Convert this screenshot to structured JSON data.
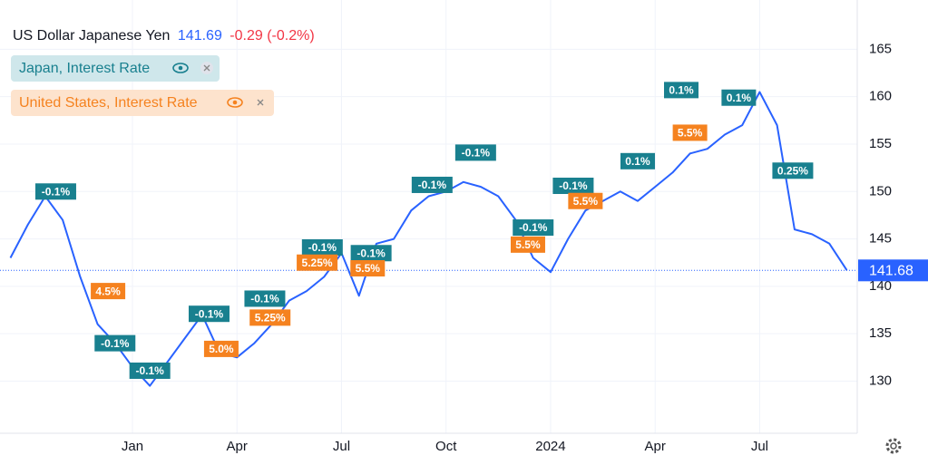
{
  "chart_data": {
    "type": "line",
    "title": "US Dollar Japanese Yen",
    "last_price": 141.69,
    "change": "-0.29 (-0.2%)",
    "current_value": 141.68,
    "x": [
      0,
      1,
      2,
      3,
      4,
      5,
      6,
      7,
      8,
      9,
      10,
      11,
      12,
      13,
      14,
      15,
      16,
      17,
      18,
      19,
      20,
      21,
      22,
      23,
      24,
      25,
      26,
      27,
      28,
      29,
      30,
      31,
      32,
      33,
      34,
      35,
      36,
      37,
      38,
      39,
      40,
      41,
      42,
      43,
      44,
      45,
      46,
      47,
      48
    ],
    "series": [
      {
        "color": "#2962ff",
        "values": [
          143,
          146.5,
          149.5,
          147,
          141,
          136,
          134,
          131.5,
          129.5,
          132,
          134.5,
          137,
          133,
          132.5,
          134,
          136,
          138.5,
          139.5,
          141,
          143.5,
          139,
          144.5,
          145,
          148,
          149.5,
          150,
          151,
          150.5,
          149.5,
          147,
          143,
          141.5,
          145,
          148,
          149,
          150,
          149,
          150.5,
          152,
          154,
          154.5,
          156,
          157,
          160.5,
          157,
          146,
          145.5,
          144.5,
          141.7
        ]
      }
    ],
    "events": [
      {
        "name": "Japan, Interest Rate",
        "color": "#19808f",
        "labels": [
          "-0.1%",
          "-0.1%",
          "-0.1%",
          "-0.1%",
          "-0.1%",
          "-0.1%",
          "-0.1%",
          "-0.1%",
          "-0.1%",
          "-0.1%",
          "-0.1%",
          "0.1%",
          "0.1%",
          "0.1%",
          "0.25%"
        ],
        "x": [
          2.6,
          6.0,
          8.0,
          11.4,
          14.6,
          17.9,
          20.7,
          24.2,
          26.7,
          30.0,
          32.3,
          36.0,
          38.5,
          41.8,
          44.9
        ],
        "y": [
          150.0,
          134.0,
          131.1,
          137.1,
          138.7,
          144.1,
          143.5,
          150.7,
          154.1,
          146.2,
          150.6,
          153.2,
          160.7,
          159.9,
          152.2
        ]
      },
      {
        "name": "United States, Interest Rate",
        "color": "#f5821f",
        "labels": [
          "4.5%",
          "5.0%",
          "5.25%",
          "5.25%",
          "5.5%",
          "5.5%",
          "5.5%",
          "5.5%"
        ],
        "x": [
          5.6,
          12.1,
          14.9,
          17.6,
          20.5,
          29.7,
          33.0,
          39.0
        ],
        "y": [
          139.5,
          133.4,
          136.7,
          142.5,
          141.9,
          144.4,
          149.0,
          156.2
        ]
      }
    ],
    "xlim": [
      -0.6,
      48.6
    ],
    "xticks": [
      {
        "value": 7,
        "label": "Jan"
      },
      {
        "value": 13,
        "label": "Apr"
      },
      {
        "value": 19,
        "label": "Jul"
      },
      {
        "value": 25,
        "label": "Oct"
      },
      {
        "value": 31,
        "label": "2024"
      },
      {
        "value": 37,
        "label": "Apr"
      },
      {
        "value": 43,
        "label": "Jul"
      }
    ],
    "ylim": [
      124.5,
      170.2
    ],
    "yticks": [
      130,
      135,
      140,
      145,
      150,
      155,
      160,
      165
    ],
    "grid": true
  }
}
